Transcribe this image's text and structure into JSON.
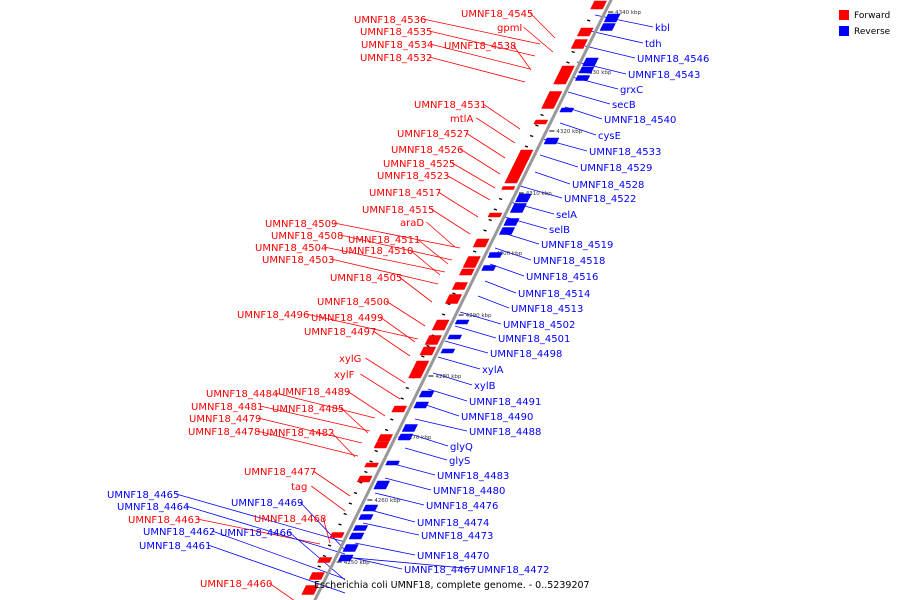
{
  "caption": "Escherichia coli UMNF18, complete genome. - 0..5239207",
  "legend": [
    {
      "label": "Forward",
      "color": "#ff0000"
    },
    {
      "label": "Reverse",
      "color": "#0000ff"
    }
  ],
  "colors": {
    "forward": "#ff0000",
    "reverse": "#0000ff",
    "axis": "#999999"
  },
  "ticks": [
    "4340 kbp",
    "4330 kbp",
    "4320 kbp",
    "4310 kbp",
    "4300 kbp",
    "4290 kbp",
    "4280 kbp",
    "4270 kbp",
    "4260 kbp",
    "4250 kbp"
  ],
  "forward_labels": [
    "UMNF18_4545",
    "gpmI",
    "UMNF18_4536",
    "UMNF18_4535",
    "UMNF18_4534",
    "UMNF18_4538",
    "UMNF18_4532",
    "UMNF18_4531",
    "mtlA",
    "UMNF18_4527",
    "UMNF18_4526",
    "UMNF18_4525",
    "UMNF18_4523",
    "UMNF18_4517",
    "UMNF18_4515",
    "UMNF18_4509",
    "araD",
    "UMNF18_4508",
    "UMNF18_4511",
    "UMNF18_4504",
    "UMNF18_4510",
    "UMNF18_4503",
    "UMNF18_4505",
    "UMNF18_4500",
    "UMNF18_4496",
    "UMNF18_4499",
    "UMNF18_4497",
    "xylG",
    "xylF",
    "UMNF18_4489",
    "UMNF18_4484",
    "UMNF18_4481",
    "UMNF18_4485",
    "UMNF18_4479",
    "UMNF18_4478",
    "UMNF18_4482",
    "UMNF18_4477",
    "tag",
    "UMNF18_4468",
    "UMNF18_4463",
    "UMNF18_4460"
  ],
  "reverse_labels": [
    "kbl",
    "tdh",
    "UMNF18_4546",
    "UMNF18_4543",
    "grxC",
    "secB",
    "UMNF18_4540",
    "cysE",
    "UMNF18_4533",
    "UMNF18_4529",
    "UMNF18_4528",
    "UMNF18_4522",
    "selA",
    "selB",
    "UMNF18_4519",
    "UMNF18_4518",
    "UMNF18_4516",
    "UMNF18_4514",
    "UMNF18_4513",
    "UMNF18_4502",
    "UMNF18_4501",
    "UMNF18_4498",
    "xylA",
    "xylB",
    "UMNF18_4491",
    "UMNF18_4490",
    "UMNF18_4488",
    "glyQ",
    "glyS",
    "UMNF18_4483",
    "UMNF18_4480",
    "UMNF18_4476",
    "UMNF18_4474",
    "UMNF18_4473",
    "UMNF18_4470",
    "UMNF18_4467",
    "UMNF18_4472",
    "UMNF18_4465",
    "UMNF18_4464",
    "UMNF18_4469",
    "UMNF18_4466",
    "UMNF18_4462",
    "UMNF18_4461"
  ]
}
